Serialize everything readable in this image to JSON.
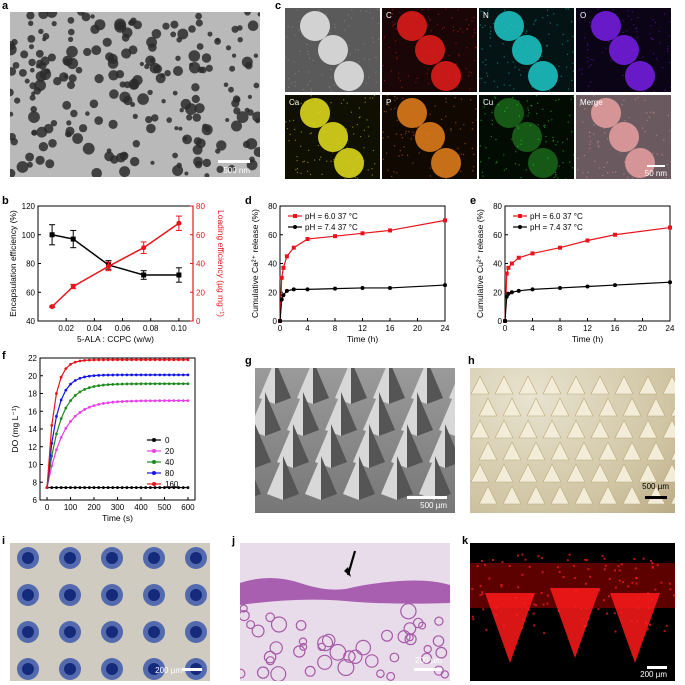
{
  "panel_labels": {
    "a": "a",
    "b": "b",
    "c": "c",
    "d": "d",
    "e": "e",
    "f": "f",
    "g": "g",
    "h": "h",
    "i": "i",
    "j": "j",
    "k": "k"
  },
  "scale_bars": {
    "a": "500 nm",
    "c": "50 nm",
    "g": "500 µm",
    "h": "500 µm",
    "i": "200 µm",
    "j": "200 µm",
    "k": "200 µm"
  },
  "eds_tiles": [
    "",
    "C",
    "N",
    "O",
    "Ca",
    "P",
    "Cu",
    "Merge"
  ],
  "colors": {
    "black": "#000000",
    "red": "#e8141b",
    "magenta": "#e83fe8",
    "green": "#1b8a1b",
    "blue": "#1515e8"
  },
  "chart_data": [
    {
      "id": "b",
      "type": "line",
      "xlabel": "5-ALA : CCPC (w/w)",
      "ylabel_left": "Encapsulation efficiency (%)",
      "ylabel_right": "Loading efficiency (µg mg⁻¹)",
      "xlim": [
        0,
        0.11
      ],
      "ylim_left": [
        40,
        120
      ],
      "ylim_right": [
        0,
        80
      ],
      "xticks": [
        "0.02",
        "0.04",
        "0.06",
        "0.08",
        "0.10"
      ],
      "yticks_left": [
        "40",
        "60",
        "80",
        "100",
        "120"
      ],
      "yticks_right": [
        "0",
        "20",
        "40",
        "60",
        "80"
      ],
      "x": [
        0.01,
        0.025,
        0.05,
        0.075,
        0.1
      ],
      "series": [
        {
          "axis": "left",
          "color": "#000000",
          "values": [
            100,
            97,
            79,
            72,
            72
          ],
          "err": [
            7,
            6,
            3,
            3,
            5
          ]
        },
        {
          "axis": "right",
          "color": "#e8141b",
          "values": [
            10,
            24,
            38,
            51,
            68
          ],
          "err": [
            0.5,
            1.5,
            3,
            4,
            5
          ]
        }
      ]
    },
    {
      "id": "d",
      "type": "line",
      "xlabel": "Time (h)",
      "ylabel": "Cumulative Ca²⁺ release (%)",
      "xlim": [
        0,
        24
      ],
      "ylim": [
        0,
        80
      ],
      "xticks": [
        "0",
        "4",
        "8",
        "12",
        "16",
        "20",
        "24"
      ],
      "yticks": [
        "0",
        "20",
        "40",
        "60",
        "80"
      ],
      "legend": [
        "pH = 6.0   37 °C",
        "pH = 7.4   37 °C"
      ],
      "series": [
        {
          "name": "pH = 6.0   37 °C",
          "color": "#e8141b",
          "x": [
            0,
            0.25,
            0.5,
            1,
            2,
            4,
            8,
            12,
            16,
            24
          ],
          "values": [
            0,
            30,
            37,
            45,
            51,
            57,
            59,
            61,
            63,
            70
          ]
        },
        {
          "name": "pH = 7.4   37 °C",
          "color": "#000000",
          "x": [
            0,
            0.25,
            0.5,
            1,
            2,
            4,
            8,
            12,
            16,
            24
          ],
          "values": [
            0,
            15,
            18,
            21,
            22,
            22,
            22.5,
            23,
            23,
            25
          ]
        }
      ]
    },
    {
      "id": "e",
      "type": "line",
      "xlabel": "Time (h)",
      "ylabel": "Cumulative Cu²⁺ release (%)",
      "xlim": [
        0,
        24
      ],
      "ylim": [
        0,
        80
      ],
      "xticks": [
        "0",
        "4",
        "8",
        "12",
        "16",
        "20",
        "24"
      ],
      "yticks": [
        "0",
        "20",
        "40",
        "60",
        "80"
      ],
      "legend": [
        "pH = 6.0   37 °C",
        "pH = 7.4   37 °C"
      ],
      "series": [
        {
          "name": "pH = 6.0   37 °C",
          "color": "#e8141b",
          "x": [
            0,
            0.25,
            0.5,
            1,
            2,
            4,
            8,
            12,
            16,
            24
          ],
          "values": [
            0,
            33,
            37,
            40,
            44,
            47,
            51,
            56,
            60,
            65
          ]
        },
        {
          "name": "pH = 7.4   37 °C",
          "color": "#000000",
          "x": [
            0,
            0.25,
            0.5,
            1,
            2,
            4,
            8,
            12,
            16,
            24
          ],
          "values": [
            0,
            17,
            19,
            20,
            21,
            22,
            23,
            24,
            25,
            27
          ]
        }
      ]
    },
    {
      "id": "f",
      "type": "line",
      "xlabel": "Time (s)",
      "ylabel": "DO (mg L⁻¹)",
      "xlim": [
        -30,
        630
      ],
      "ylim": [
        6,
        22
      ],
      "xticks": [
        "0",
        "100",
        "200",
        "300",
        "400",
        "500",
        "600"
      ],
      "yticks": [
        "6",
        "8",
        "10",
        "12",
        "14",
        "16",
        "18",
        "20",
        "22"
      ],
      "legend": [
        "0",
        "20",
        "40",
        "80",
        "160"
      ],
      "series": [
        {
          "name": "0",
          "color": "#000000",
          "plateau": 7.4,
          "tau": 1
        },
        {
          "name": "20",
          "color": "#e83fe8",
          "plateau": 17.2,
          "tau": 70
        },
        {
          "name": "40",
          "color": "#1b8a1b",
          "plateau": 19.1,
          "tau": 55
        },
        {
          "name": "80",
          "color": "#1515e8",
          "plateau": 20.1,
          "tau": 40
        },
        {
          "name": "160",
          "color": "#e8141b",
          "plateau": 21.8,
          "tau": 30
        }
      ]
    }
  ]
}
